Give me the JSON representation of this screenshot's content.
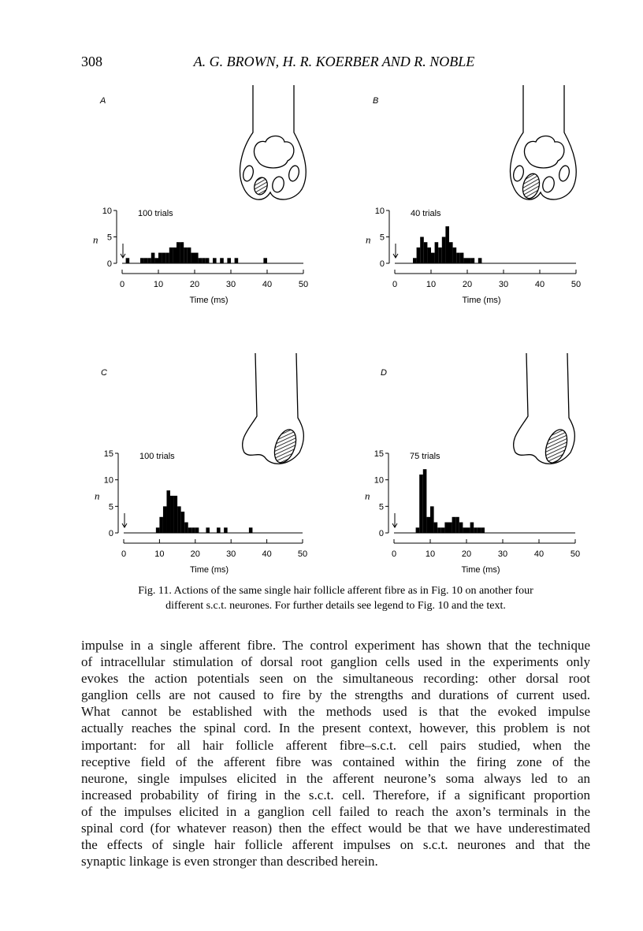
{
  "header": {
    "page_number": "308",
    "authors": "A. G. BROWN, H. R. KOERBER AND R. NOBLE"
  },
  "figure": {
    "panels": [
      {
        "label": "A",
        "annotation": "100 trials",
        "y_label": "n",
        "x_label": "Time (ms)",
        "xlim": [
          0,
          50
        ],
        "xticks": [
          0,
          10,
          20,
          30,
          40,
          50
        ],
        "ylim": [
          0,
          10
        ],
        "yticks": [
          0,
          5,
          10
        ],
        "bins": [
          0,
          1,
          2,
          3,
          4,
          5,
          6,
          7,
          8,
          9,
          10,
          11,
          12,
          13,
          14,
          15,
          16,
          17,
          18,
          19,
          20,
          21,
          22,
          23,
          24,
          25,
          26,
          27,
          28,
          29,
          30,
          31,
          32,
          33,
          34,
          35,
          36,
          37,
          38,
          39,
          40,
          41,
          42,
          43,
          44,
          45,
          46,
          47,
          48,
          49,
          50
        ],
        "counts": [
          0,
          1,
          0,
          0,
          0,
          1,
          1,
          1,
          2,
          1,
          2,
          2,
          2,
          3,
          3,
          4,
          4,
          3,
          3,
          2,
          2,
          1,
          1,
          1,
          0,
          1,
          0,
          1,
          0,
          1,
          0,
          1,
          0,
          0,
          0,
          0,
          0,
          0,
          0,
          1,
          0,
          0,
          0,
          0,
          0,
          0,
          0,
          0,
          0,
          0
        ]
      },
      {
        "label": "B",
        "annotation": "40 trials",
        "y_label": "n",
        "x_label": "Time (ms)",
        "xlim": [
          0,
          50
        ],
        "xticks": [
          0,
          10,
          20,
          30,
          40,
          50
        ],
        "ylim": [
          0,
          10
        ],
        "yticks": [
          0,
          5,
          10
        ],
        "bins": [
          0,
          1,
          2,
          3,
          4,
          5,
          6,
          7,
          8,
          9,
          10,
          11,
          12,
          13,
          14,
          15,
          16,
          17,
          18,
          19,
          20,
          21,
          22,
          23,
          24,
          25,
          26,
          27,
          28,
          29,
          30,
          31,
          32,
          33,
          34,
          35,
          36,
          37,
          38,
          39,
          40,
          41,
          42,
          43,
          44,
          45,
          46,
          47,
          48,
          49,
          50
        ],
        "counts": [
          0,
          0,
          0,
          0,
          0,
          1,
          3,
          5,
          4,
          3,
          2,
          4,
          3,
          5,
          7,
          4,
          3,
          2,
          2,
          1,
          1,
          1,
          0,
          1,
          0,
          0,
          0,
          0,
          0,
          0,
          0,
          0,
          0,
          0,
          0,
          0,
          0,
          0,
          0,
          0,
          0,
          0,
          0,
          0,
          0,
          0,
          0,
          0,
          0,
          0
        ]
      },
      {
        "label": "C",
        "annotation": "100 trials",
        "y_label": "n",
        "x_label": "Time (ms)",
        "xlim": [
          0,
          50
        ],
        "xticks": [
          0,
          10,
          20,
          30,
          40,
          50
        ],
        "ylim": [
          0,
          15
        ],
        "yticks": [
          0,
          5,
          10,
          15
        ],
        "bins": [
          0,
          1,
          2,
          3,
          4,
          5,
          6,
          7,
          8,
          9,
          10,
          11,
          12,
          13,
          14,
          15,
          16,
          17,
          18,
          19,
          20,
          21,
          22,
          23,
          24,
          25,
          26,
          27,
          28,
          29,
          30,
          31,
          32,
          33,
          34,
          35,
          36,
          37,
          38,
          39,
          40,
          41,
          42,
          43,
          44,
          45,
          46,
          47,
          48,
          49,
          50
        ],
        "counts": [
          0,
          0,
          0,
          0,
          0,
          0,
          0,
          0,
          0,
          1,
          3,
          5,
          8,
          7,
          7,
          5,
          4,
          2,
          1,
          1,
          1,
          0,
          0,
          1,
          0,
          0,
          1,
          0,
          1,
          0,
          0,
          0,
          0,
          0,
          0,
          1,
          0,
          0,
          0,
          0,
          0,
          0,
          0,
          0,
          0,
          0,
          0,
          0,
          0,
          0
        ]
      },
      {
        "label": "D",
        "annotation": "75 trials",
        "y_label": "n",
        "x_label": "Time (ms)",
        "xlim": [
          0,
          50
        ],
        "xticks": [
          0,
          10,
          20,
          30,
          40,
          50
        ],
        "ylim": [
          0,
          15
        ],
        "yticks": [
          0,
          5,
          10,
          15
        ],
        "bins": [
          0,
          1,
          2,
          3,
          4,
          5,
          6,
          7,
          8,
          9,
          10,
          11,
          12,
          13,
          14,
          15,
          16,
          17,
          18,
          19,
          20,
          21,
          22,
          23,
          24,
          25,
          26,
          27,
          28,
          29,
          30,
          31,
          32,
          33,
          34,
          35,
          36,
          37,
          38,
          39,
          40,
          41,
          42,
          43,
          44,
          45,
          46,
          47,
          48,
          49,
          50
        ],
        "counts": [
          0,
          0,
          0,
          0,
          0,
          0,
          1,
          11,
          12,
          3,
          5,
          2,
          1,
          1,
          2,
          2,
          3,
          3,
          2,
          1,
          1,
          2,
          1,
          1,
          1,
          0,
          0,
          0,
          0,
          0,
          0,
          0,
          0,
          0,
          0,
          0,
          0,
          0,
          0,
          0,
          0,
          0,
          0,
          0,
          0,
          0,
          0,
          0,
          0,
          0
        ]
      }
    ],
    "caption_lines": [
      "Fig. 11. Actions of the same single hair follicle afferent fibre as in Fig. 10 on another four",
      "different s.c.t. neurones. For further details see legend to Fig. 10 and the text."
    ]
  },
  "body_lines": [
    "impulse in a single afferent fibre. The control experiment has shown that the technique",
    "of intracellular stimulation of dorsal root ganglion cells used in the experiments only",
    "evokes the action potentials seen on the simultaneous recording: other dorsal root",
    "ganglion cells are not caused to fire by the strengths and durations of current used.",
    "What cannot be established with the methods used is that the evoked impulse",
    "actually reaches the spinal cord. In the present context, however, this problem is not",
    "important: for all hair follicle afferent fibre–s.c.t. cell pairs studied, when the",
    "receptive field of the afferent fibre was contained within the firing zone of the",
    "neurone, single impulses elicited in the afferent neurone’s soma always led to an",
    "increased probability of firing in the s.c.t. cell. Therefore, if a significant proportion",
    "of the impulses elicited in a ganglion cell failed to reach the axon’s terminals in the",
    "spinal cord (for whatever reason) then the effect would be that we have underestimated",
    "the effects of single hair follicle afferent impulses on s.c.t. neurones and that the",
    "synaptic linkage is even stronger than described herein."
  ]
}
